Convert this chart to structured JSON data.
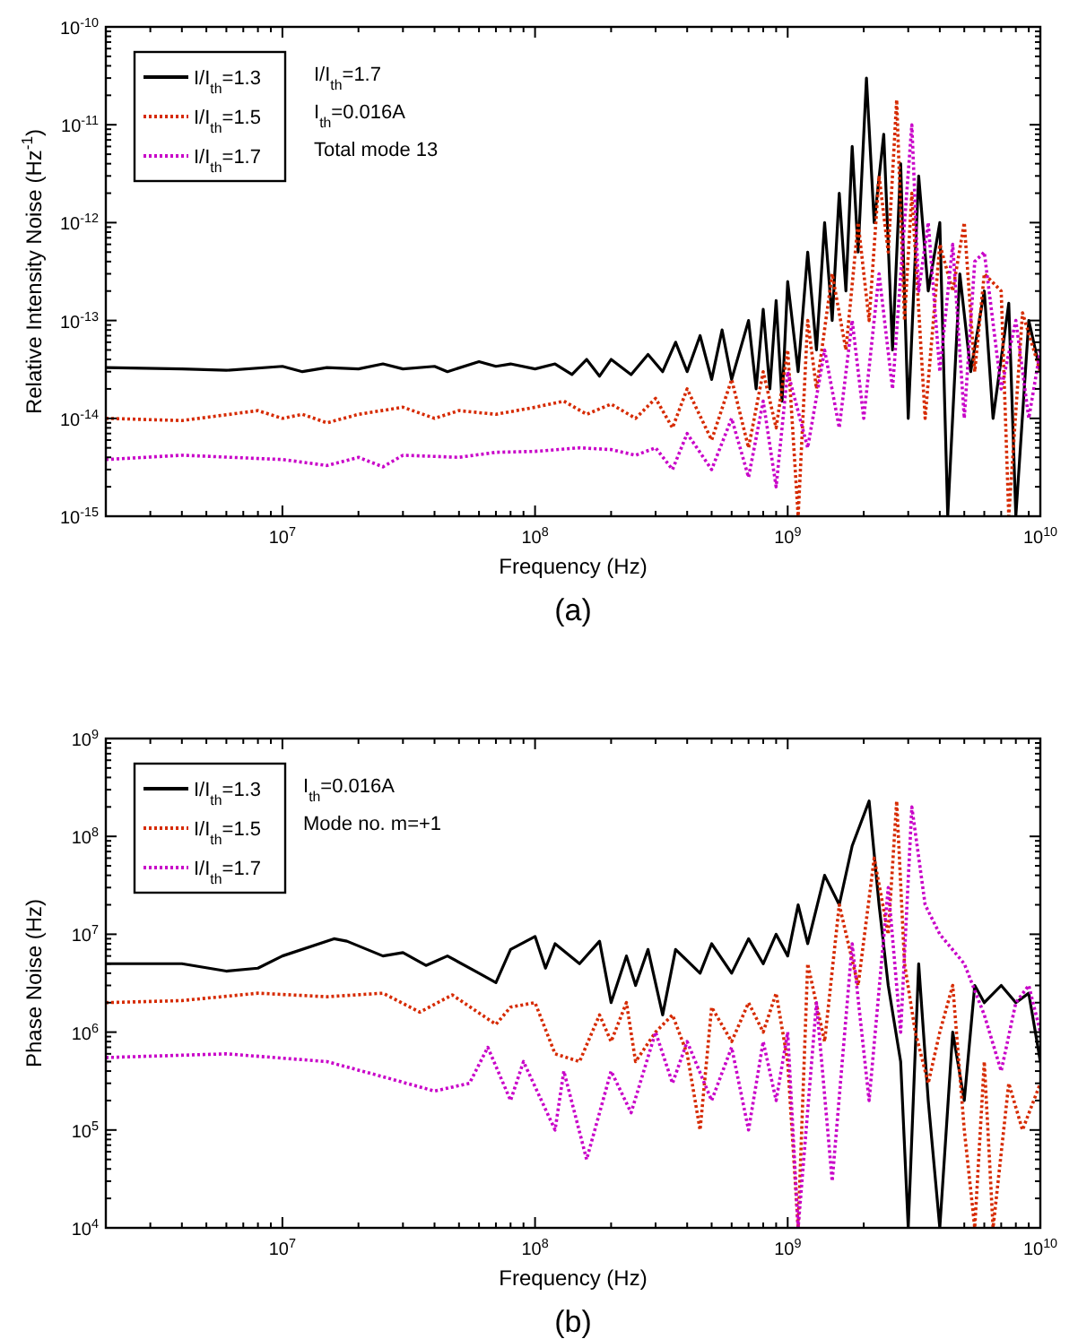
{
  "chart_data": [
    {
      "type": "line",
      "title": "(a)",
      "xlabel": "Frequency (Hz)",
      "ylabel": "Relative Intensity Noise (Hz$^{-1}$)",
      "log": "xy",
      "grid": false,
      "legend": "top left",
      "xlim": [
        2000000,
        10000000000
      ],
      "xticks": [
        {
          "value": 10000000,
          "label": "10$^{7}$"
        },
        {
          "value": 100000000,
          "label": "10$^{8}$"
        },
        {
          "value": 1000000000,
          "label": "10$^{9}$"
        },
        {
          "value": 10000000000,
          "label": "10$^{10}$"
        }
      ],
      "ylim": [
        1e-15,
        1e-10
      ],
      "yticks": [
        {
          "value": 1e-15,
          "label": "10$^{-15}$"
        },
        {
          "value": 1e-14,
          "label": "10$^{-14}$"
        },
        {
          "value": 1e-13,
          "label": "10$^{-13}$"
        },
        {
          "value": 1e-12,
          "label": "10$^{-12}$"
        },
        {
          "value": 1e-11,
          "label": "10$^{-11}$"
        },
        {
          "value": 1e-10,
          "label": "10$^{-10}$"
        }
      ],
      "annotations": [
        "I/I$_{th}$=1.7",
        "I$_{th}$=0.016A",
        "Total mode 13"
      ],
      "series": [
        {
          "name": "I/I$_{th}$=1.3",
          "color": "#000000",
          "line_style": "solid",
          "x": [
            2000000.0,
            4000000.0,
            6000000.0,
            10000000.0,
            12000000.0,
            15000000.0,
            20000000.0,
            25000000.0,
            30000000.0,
            40000000.0,
            45000000.0,
            60000000.0,
            70000000.0,
            80000000.0,
            100000000.0,
            120000000.0,
            140000000.0,
            160000000.0,
            180000000.0,
            200000000.0,
            240000000.0,
            280000000.0,
            320000000.0,
            360000000.0,
            400000000.0,
            450000000.0,
            500000000.0,
            550000000.0,
            600000000.0,
            700000000.0,
            750000000.0,
            800000000.0,
            850000000.0,
            900000000.0,
            950000000.0,
            1000000000.0,
            1100000000.0,
            1200000000.0,
            1300000000.0,
            1400000000.0,
            1500000000.0,
            1600000000.0,
            1700000000.0,
            1800000000.0,
            1900000000.0,
            2050000000.0,
            2200000000.0,
            2400000000.0,
            2600000000.0,
            2800000000.0,
            3000000000.0,
            3300000000.0,
            3600000000.0,
            4000000000.0,
            4300000000.0,
            4800000000.0,
            5300000000.0,
            6000000000.0,
            6500000000.0,
            7500000000.0,
            8000000000.0,
            9000000000.0,
            10000000000.0
          ],
          "values": [
            3.3e-14,
            3.2e-14,
            3.1e-14,
            3.4e-14,
            3e-14,
            3.3e-14,
            3.2e-14,
            3.6e-14,
            3.2e-14,
            3.4e-14,
            3e-14,
            3.8e-14,
            3.4e-14,
            3.6e-14,
            3.2e-14,
            3.6e-14,
            2.8e-14,
            4e-14,
            2.7e-14,
            4e-14,
            2.8e-14,
            4.5e-14,
            3e-14,
            6e-14,
            3e-14,
            7e-14,
            2.5e-14,
            8e-14,
            2.5e-14,
            1e-13,
            2e-14,
            1.3e-13,
            2e-14,
            1.6e-13,
            1.5e-14,
            2.5e-13,
            3e-14,
            5e-13,
            5e-14,
            1e-12,
            1e-13,
            2e-12,
            2e-13,
            6e-12,
            5e-13,
            3e-11,
            1e-12,
            8e-12,
            5e-14,
            4e-12,
            1e-14,
            3e-12,
            2e-13,
            1e-12,
            1e-15,
            3e-13,
            3e-14,
            2e-13,
            1e-14,
            1.5e-13,
            1e-15,
            1e-13,
            3e-14
          ]
        },
        {
          "name": "I/I$_{th}$=1.5",
          "color": "#d62a00",
          "line_style": "dotted",
          "x": [
            2000000.0,
            4000000.0,
            8000000.0,
            10000000.0,
            12000000.0,
            15000000.0,
            20000000.0,
            30000000.0,
            40000000.0,
            50000000.0,
            70000000.0,
            100000000.0,
            130000000.0,
            160000000.0,
            200000000.0,
            250000000.0,
            300000000.0,
            350000000.0,
            400000000.0,
            500000000.0,
            600000000.0,
            700000000.0,
            800000000.0,
            900000000.0,
            1000000000.0,
            1100000000.0,
            1200000000.0,
            1300000000.0,
            1500000000.0,
            1700000000.0,
            1900000000.0,
            2100000000.0,
            2300000000.0,
            2500000000.0,
            2700000000.0,
            2900000000.0,
            3100000000.0,
            3500000000.0,
            4000000000.0,
            4500000000.0,
            5000000000.0,
            5500000000.0,
            6000000000.0,
            7000000000.0,
            7500000000.0,
            8500000000.0,
            10000000000.0
          ],
          "values": [
            1e-14,
            9.5e-15,
            1.2e-14,
            1e-14,
            1.1e-14,
            9e-15,
            1.1e-14,
            1.3e-14,
            1e-14,
            1.2e-14,
            1.1e-14,
            1.3e-14,
            1.5e-14,
            1.1e-14,
            1.4e-14,
            1e-14,
            1.6e-14,
            8e-15,
            2e-14,
            6e-15,
            2.5e-14,
            5e-15,
            3e-14,
            8e-15,
            5e-14,
            1e-15,
            1e-13,
            2e-14,
            3e-13,
            5e-14,
            1e-12,
            1e-13,
            3e-12,
            5e-13,
            1.8e-11,
            1e-13,
            2e-12,
            1e-14,
            6e-13,
            2e-13,
            1e-12,
            3e-14,
            3e-13,
            2e-13,
            1e-15,
            1.2e-13,
            3e-14
          ]
        },
        {
          "name": "I/I$_{th}$=1.7",
          "color": "#c800c8",
          "line_style": "dotted",
          "x": [
            2000000.0,
            4000000.0,
            10000000.0,
            15000000.0,
            20000000.0,
            25000000.0,
            30000000.0,
            50000000.0,
            70000000.0,
            100000000.0,
            150000000.0,
            200000000.0,
            250000000.0,
            300000000.0,
            350000000.0,
            400000000.0,
            500000000.0,
            600000000.0,
            700000000.0,
            800000000.0,
            900000000.0,
            1000000000.0,
            1200000000.0,
            1400000000.0,
            1600000000.0,
            1800000000.0,
            2000000000.0,
            2300000000.0,
            2600000000.0,
            2900000000.0,
            3100000000.0,
            3300000000.0,
            3600000000.0,
            4000000000.0,
            4500000000.0,
            5000000000.0,
            5500000000.0,
            6000000000.0,
            7000000000.0,
            8000000000.0,
            9000000000.0,
            10000000000.0
          ],
          "values": [
            3.8e-15,
            4.2e-15,
            3.8e-15,
            3.3e-15,
            4e-15,
            3.2e-15,
            4.2e-15,
            4e-15,
            4.5e-15,
            4.6e-15,
            5e-15,
            4.8e-15,
            4.2e-15,
            5e-15,
            3e-15,
            7e-15,
            3e-15,
            1e-14,
            2.5e-15,
            1.5e-14,
            2e-15,
            3e-14,
            5e-15,
            5e-14,
            8e-15,
            1e-13,
            1e-14,
            3e-13,
            2e-14,
            1e-12,
            1e-11,
            2e-13,
            1e-12,
            3e-14,
            6e-13,
            1e-14,
            4e-13,
            5e-13,
            2e-14,
            1e-13,
            1e-14,
            5e-14
          ]
        }
      ]
    },
    {
      "type": "line",
      "title": "(b)",
      "xlabel": "Frequency (Hz)",
      "ylabel": "Phase Noise (Hz)",
      "log": "xy",
      "grid": false,
      "legend": "top left",
      "xlim": [
        2000000,
        10000000000
      ],
      "xticks": [
        {
          "value": 10000000,
          "label": "10$^{7}$"
        },
        {
          "value": 100000000,
          "label": "10$^{8}$"
        },
        {
          "value": 1000000000,
          "label": "10$^{9}$"
        },
        {
          "value": 10000000000,
          "label": "10$^{10}$"
        }
      ],
      "ylim": [
        10000,
        1000000000
      ],
      "yticks": [
        {
          "value": 10000,
          "label": "10$^{4}$"
        },
        {
          "value": 100000,
          "label": "10$^{5}$"
        },
        {
          "value": 1000000,
          "label": "10$^{6}$"
        },
        {
          "value": 10000000,
          "label": "10$^{7}$"
        },
        {
          "value": 100000000,
          "label": "10$^{8}$"
        },
        {
          "value": 1000000000,
          "label": "10$^{9}$"
        }
      ],
      "annotations": [
        "I$_{th}$=0.016A",
        "Mode no. m=+1"
      ],
      "series": [
        {
          "name": "I/I$_{th}$=1.3",
          "color": "#000000",
          "line_style": "solid",
          "x": [
            2000000.0,
            4000000.0,
            6000000.0,
            8000000.0,
            10000000.0,
            16000000.0,
            18000000.0,
            25000000.0,
            30000000.0,
            37000000.0,
            45000000.0,
            60000000.0,
            70000000.0,
            80000000.0,
            100000000.0,
            110000000.0,
            120000000.0,
            150000000.0,
            180000000.0,
            200000000.0,
            230000000.0,
            250000000.0,
            280000000.0,
            320000000.0,
            360000000.0,
            450000000.0,
            500000000.0,
            600000000.0,
            700000000.0,
            800000000.0,
            900000000.0,
            1000000000.0,
            1100000000.0,
            1200000000.0,
            1400000000.0,
            1600000000.0,
            1800000000.0,
            2100000000.0,
            2300000000.0,
            2500000000.0,
            2800000000.0,
            3000000000.0,
            3300000000.0,
            3600000000.0,
            4000000000.0,
            4500000000.0,
            5000000000.0,
            5500000000.0,
            6000000000.0,
            7000000000.0,
            8000000000.0,
            9000000000.0,
            10000000000.0
          ],
          "values": [
            5000000.0,
            5000000.0,
            4200000.0,
            4500000.0,
            6000000.0,
            9000000.0,
            8500000.0,
            6000000.0,
            6500000.0,
            4800000.0,
            6000000.0,
            4000000.0,
            3200000.0,
            7000000.0,
            9500000.0,
            4500000.0,
            8000000.0,
            5000000.0,
            8500000.0,
            2000000.0,
            6000000.0,
            3000000.0,
            7000000.0,
            1500000.0,
            7000000.0,
            4000000.0,
            8000000.0,
            4000000.0,
            9000000.0,
            5000000.0,
            10000000.0,
            6000000.0,
            20000000.0,
            8000000.0,
            40000000.0,
            20000000.0,
            80000000.0,
            230000000.0,
            20000000.0,
            3000000.0,
            500000.0,
            10000.0,
            5000000.0,
            200000.0,
            10000.0,
            1000000.0,
            200000.0,
            3000000.0,
            2000000.0,
            3000000.0,
            2000000.0,
            2500000.0,
            500000.0
          ]
        },
        {
          "name": "I/I$_{th}$=1.5",
          "color": "#d62a00",
          "line_style": "dotted",
          "x": [
            2000000.0,
            4000000.0,
            8000000.0,
            15000000.0,
            25000000.0,
            35000000.0,
            47000000.0,
            70000000.0,
            80000000.0,
            100000000.0,
            120000000.0,
            150000000.0,
            180000000.0,
            200000000.0,
            230000000.0,
            250000000.0,
            300000000.0,
            350000000.0,
            400000000.0,
            450000000.0,
            500000000.0,
            600000000.0,
            700000000.0,
            800000000.0,
            900000000.0,
            1000000000.0,
            1100000000.0,
            1200000000.0,
            1400000000.0,
            1600000000.0,
            1900000000.0,
            2200000000.0,
            2500000000.0,
            2700000000.0,
            2900000000.0,
            3200000000.0,
            3600000000.0,
            4000000000.0,
            4500000000.0,
            5000000000.0,
            5500000000.0,
            6000000000.0,
            6500000000.0,
            7500000000.0,
            8500000000.0,
            10000000000.0
          ],
          "values": [
            2000000.0,
            2100000.0,
            2500000.0,
            2300000.0,
            2500000.0,
            1600000.0,
            2400000.0,
            1200000.0,
            1800000.0,
            2000000.0,
            600000.0,
            500000.0,
            1500000.0,
            800000.0,
            2000000.0,
            500000.0,
            1000000.0,
            1500000.0,
            600000.0,
            100000.0,
            1800000.0,
            800000.0,
            2000000.0,
            1000000.0,
            2500000.0,
            500000.0,
            10000.0,
            5000000.0,
            800000.0,
            20000000.0,
            3000000.0,
            60000000.0,
            10000000.0,
            230000000.0,
            5000000.0,
            1000000.0,
            300000.0,
            1000000.0,
            3000000.0,
            100000.0,
            10000.0,
            500000.0,
            10000.0,
            300000.0,
            100000.0,
            300000.0
          ]
        },
        {
          "name": "I/I$_{th}$=1.7",
          "color": "#c800c8",
          "line_style": "dotted",
          "x": [
            2000000.0,
            6000000.0,
            15000000.0,
            25000000.0,
            40000000.0,
            55000000.0,
            65000000.0,
            80000000.0,
            90000000.0,
            120000000.0,
            130000000.0,
            160000000.0,
            200000000.0,
            240000000.0,
            300000000.0,
            350000000.0,
            400000000.0,
            500000000.0,
            600000000.0,
            700000000.0,
            800000000.0,
            900000000.0,
            1000000000.0,
            1100000000.0,
            1300000000.0,
            1500000000.0,
            1800000000.0,
            2100000000.0,
            2500000000.0,
            2800000000.0,
            3100000000.0,
            3500000000.0,
            4000000000.0,
            5000000000.0,
            6000000000.0,
            7000000000.0,
            8000000000.0,
            9000000000.0,
            10000000000.0
          ],
          "values": [
            550000.0,
            600000.0,
            500000.0,
            350000.0,
            250000.0,
            300000.0,
            700000.0,
            200000.0,
            500000.0,
            100000.0,
            400000.0,
            50000.0,
            400000.0,
            150000.0,
            1000000.0,
            300000.0,
            800000.0,
            200000.0,
            700000.0,
            100000.0,
            800000.0,
            200000.0,
            1000000.0,
            10000.0,
            2000000.0,
            30000.0,
            8000000.0,
            200000.0,
            30000000.0,
            1000000.0,
            200000000.0,
            20000000.0,
            10000000.0,
            5000000.0,
            1500000.0,
            400000.0,
            2000000.0,
            3000000.0,
            1000000.0
          ]
        }
      ]
    }
  ]
}
